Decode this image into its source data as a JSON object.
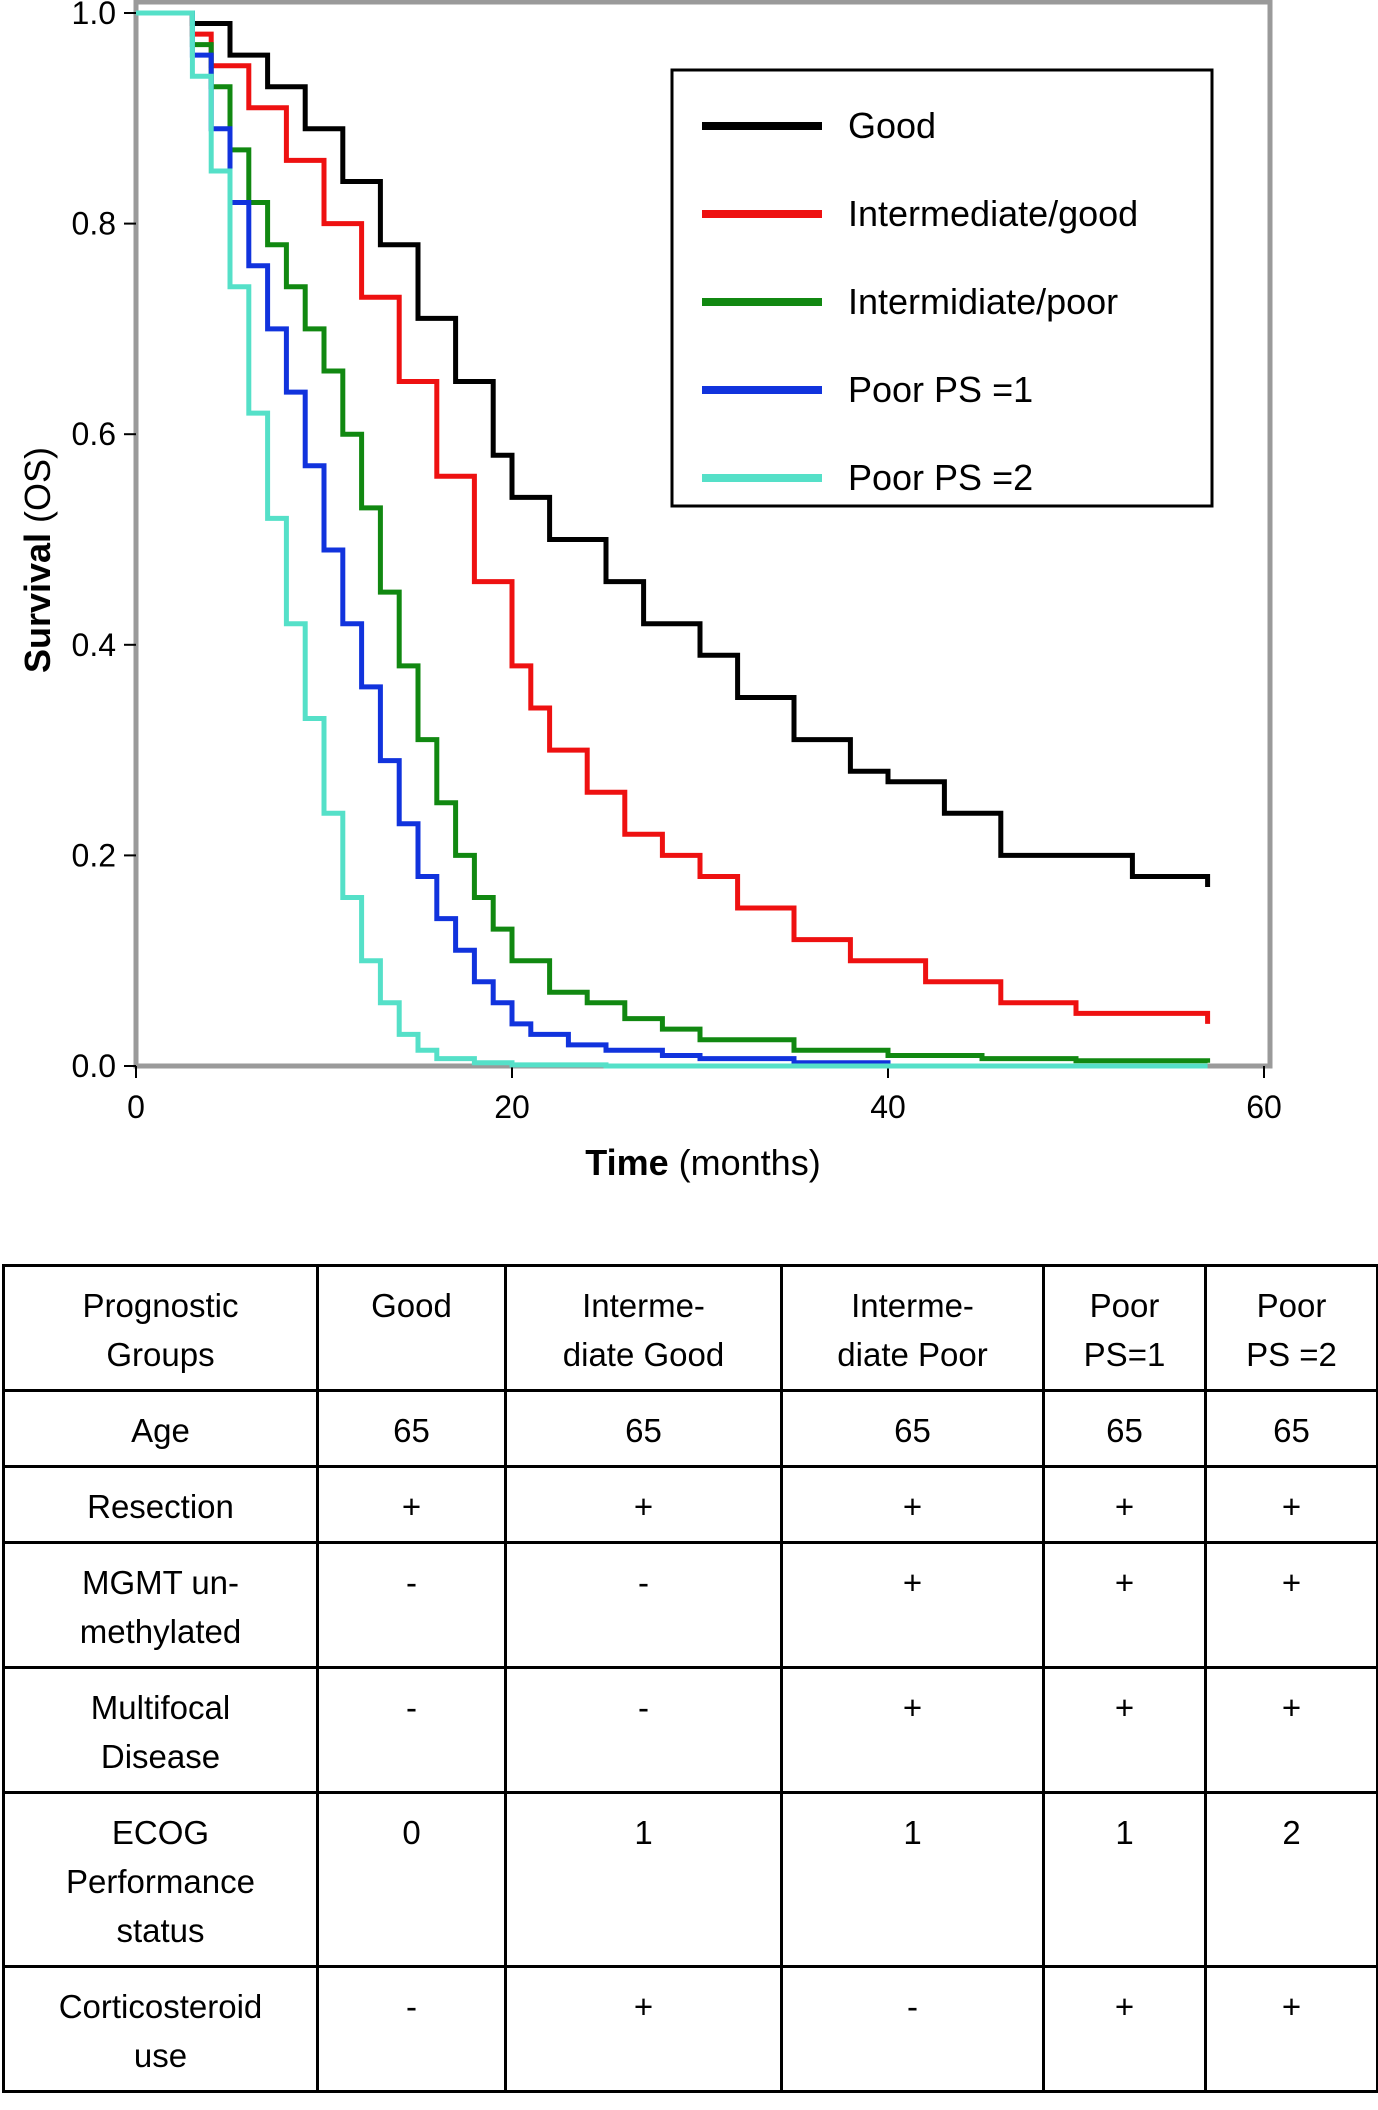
{
  "chart_data": {
    "type": "line",
    "subtype": "kaplan-meier step curves",
    "xlabel_bold": "Time",
    "xlabel_rest": " (months)",
    "ylabel_bold": "Survival",
    "ylabel_rest": " (OS)",
    "xlim": [
      0,
      60
    ],
    "ylim": [
      0,
      1
    ],
    "xticks": [
      0,
      20,
      40,
      60
    ],
    "yticks": [
      "0.0",
      "0.2",
      "0.4",
      "0.6",
      "0.8",
      "1.0"
    ],
    "legend_position": "top-right",
    "series": [
      {
        "name": "Good",
        "color": "#000000",
        "points": [
          [
            0,
            1.0
          ],
          [
            2,
            1.0
          ],
          [
            3,
            0.99
          ],
          [
            5,
            0.96
          ],
          [
            7,
            0.93
          ],
          [
            9,
            0.89
          ],
          [
            11,
            0.84
          ],
          [
            13,
            0.78
          ],
          [
            15,
            0.71
          ],
          [
            17,
            0.65
          ],
          [
            19,
            0.58
          ],
          [
            20,
            0.54
          ],
          [
            22,
            0.5
          ],
          [
            25,
            0.46
          ],
          [
            27,
            0.42
          ],
          [
            30,
            0.39
          ],
          [
            32,
            0.35
          ],
          [
            35,
            0.31
          ],
          [
            38,
            0.28
          ],
          [
            40,
            0.27
          ],
          [
            43,
            0.24
          ],
          [
            46,
            0.2
          ],
          [
            50,
            0.2
          ],
          [
            53,
            0.18
          ],
          [
            57,
            0.17
          ]
        ]
      },
      {
        "name": "Intermediate/good",
        "color": "#ee1111",
        "points": [
          [
            0,
            1.0
          ],
          [
            2,
            1.0
          ],
          [
            3,
            0.98
          ],
          [
            4,
            0.95
          ],
          [
            6,
            0.91
          ],
          [
            8,
            0.86
          ],
          [
            10,
            0.8
          ],
          [
            12,
            0.73
          ],
          [
            14,
            0.65
          ],
          [
            16,
            0.56
          ],
          [
            18,
            0.46
          ],
          [
            20,
            0.38
          ],
          [
            21,
            0.34
          ],
          [
            22,
            0.3
          ],
          [
            24,
            0.26
          ],
          [
            26,
            0.22
          ],
          [
            28,
            0.2
          ],
          [
            30,
            0.18
          ],
          [
            32,
            0.15
          ],
          [
            35,
            0.12
          ],
          [
            38,
            0.1
          ],
          [
            42,
            0.08
          ],
          [
            46,
            0.06
          ],
          [
            50,
            0.05
          ],
          [
            57,
            0.04
          ]
        ]
      },
      {
        "name": "Intermidiate/poor",
        "color": "#118811",
        "points": [
          [
            0,
            1.0
          ],
          [
            2,
            1.0
          ],
          [
            3,
            0.97
          ],
          [
            4,
            0.93
          ],
          [
            5,
            0.87
          ],
          [
            6,
            0.82
          ],
          [
            7,
            0.78
          ],
          [
            8,
            0.74
          ],
          [
            9,
            0.7
          ],
          [
            10,
            0.66
          ],
          [
            11,
            0.6
          ],
          [
            12,
            0.53
          ],
          [
            13,
            0.45
          ],
          [
            14,
            0.38
          ],
          [
            15,
            0.31
          ],
          [
            16,
            0.25
          ],
          [
            17,
            0.2
          ],
          [
            18,
            0.16
          ],
          [
            19,
            0.13
          ],
          [
            20,
            0.1
          ],
          [
            22,
            0.07
          ],
          [
            24,
            0.06
          ],
          [
            26,
            0.045
          ],
          [
            28,
            0.035
          ],
          [
            30,
            0.025
          ],
          [
            35,
            0.015
          ],
          [
            40,
            0.01
          ],
          [
            45,
            0.007
          ],
          [
            50,
            0.005
          ],
          [
            57,
            0.003
          ]
        ]
      },
      {
        "name": "Poor PS =1",
        "color": "#1133dd",
        "points": [
          [
            0,
            1.0
          ],
          [
            2,
            1.0
          ],
          [
            3,
            0.96
          ],
          [
            4,
            0.89
          ],
          [
            5,
            0.82
          ],
          [
            6,
            0.76
          ],
          [
            7,
            0.7
          ],
          [
            8,
            0.64
          ],
          [
            9,
            0.57
          ],
          [
            10,
            0.49
          ],
          [
            11,
            0.42
          ],
          [
            12,
            0.36
          ],
          [
            13,
            0.29
          ],
          [
            14,
            0.23
          ],
          [
            15,
            0.18
          ],
          [
            16,
            0.14
          ],
          [
            17,
            0.11
          ],
          [
            18,
            0.08
          ],
          [
            19,
            0.06
          ],
          [
            20,
            0.04
          ],
          [
            21,
            0.03
          ],
          [
            23,
            0.02
          ],
          [
            25,
            0.015
          ],
          [
            28,
            0.01
          ],
          [
            30,
            0.007
          ],
          [
            35,
            0.003
          ],
          [
            40,
            0.001
          ]
        ]
      },
      {
        "name": "Poor PS =2",
        "color": "#55e0c8",
        "points": [
          [
            0,
            1.0
          ],
          [
            2,
            1.0
          ],
          [
            3,
            0.94
          ],
          [
            4,
            0.85
          ],
          [
            5,
            0.74
          ],
          [
            6,
            0.62
          ],
          [
            7,
            0.52
          ],
          [
            8,
            0.42
          ],
          [
            9,
            0.33
          ],
          [
            10,
            0.24
          ],
          [
            11,
            0.16
          ],
          [
            12,
            0.1
          ],
          [
            13,
            0.06
          ],
          [
            14,
            0.03
          ],
          [
            15,
            0.015
          ],
          [
            16,
            0.007
          ],
          [
            18,
            0.003
          ],
          [
            20,
            0.001
          ],
          [
            25,
            0.0
          ],
          [
            57,
            0.0
          ]
        ]
      }
    ]
  },
  "table": {
    "headers": [
      "Prognostic\nGroups",
      "Good",
      "Interme-\ndiate Good",
      "Interme-\ndiate Poor",
      "Poor\nPS=1",
      "Poor\nPS =2"
    ],
    "rows": [
      [
        "Age",
        "65",
        "65",
        "65",
        "65",
        "65"
      ],
      [
        "Resection",
        "+",
        "+",
        "+",
        "+",
        "+"
      ],
      [
        "MGMT un-\nmethylated",
        "-",
        "-",
        "+",
        "+",
        "+"
      ],
      [
        "Multifocal\nDisease",
        "-",
        "-",
        "+",
        "+",
        "+"
      ],
      [
        "ECOG\nPerformance\nstatus",
        "0",
        "1",
        "1",
        "1",
        "2"
      ],
      [
        "Corticosteroid\nuse",
        "-",
        "+",
        "-",
        "+",
        "+"
      ]
    ]
  }
}
